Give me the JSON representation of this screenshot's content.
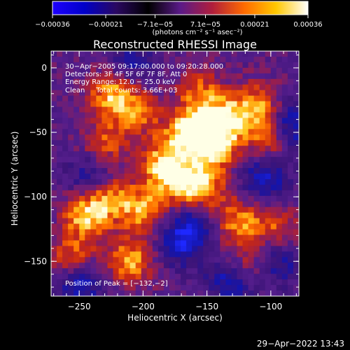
{
  "chart_data": {
    "type": "heatmap",
    "title": "Reconstructed RHESSI Image",
    "xlabel": "Heliocentric X (arcsec)",
    "ylabel": "Heliocentric Y (arcsec)",
    "xlim": [
      -272,
      -78
    ],
    "ylim": [
      -177,
      13
    ],
    "x_ticks": [
      -250,
      -200,
      -150,
      -100
    ],
    "x_tick_labels": [
      "−250",
      "−200",
      "−150",
      "−100"
    ],
    "y_ticks": [
      0,
      -50,
      -100,
      -150
    ],
    "y_tick_labels": [
      "0",
      "−50",
      "−100",
      "−150"
    ],
    "colorbar": {
      "range": [
        -0.00036,
        0.00036
      ],
      "ticks": [
        -0.00036,
        -0.00021,
        -7.1e-05,
        7.1e-05,
        0.00021,
        0.00036
      ],
      "tick_labels": [
        "−0.00036",
        "−0.00021",
        "−7.1e−05",
        "7.1e−05",
        "0.00021",
        "0.00036"
      ],
      "unit_label": "(photons cm⁻² s⁻¹ asec⁻²)",
      "colors": [
        "#1e00ff",
        "#0000c8",
        "#2a0860",
        "#000000",
        "#5a1a88",
        "#b01e3c",
        "#ff6a00",
        "#ffc800",
        "#ffffff"
      ]
    },
    "annotations": [
      "30−Apr−2005 09:17:00.000 to 09:20:28.000",
      "Detectors: 3F 4F 5F 6F 7F 8F, Att 0",
      "Energy Range: 12.0 − 25.0 keV",
      "Clean     Total counts: 3.66E+03",
      "Position of Peak = [−132,−2]"
    ],
    "peak": [
      -132,
      -2
    ],
    "bright_regions": [
      {
        "x": -165,
        "y": -50,
        "intensity": 1.0
      },
      {
        "x": -145,
        "y": -62,
        "intensity": 0.95
      },
      {
        "x": -135,
        "y": -40,
        "intensity": 0.85
      },
      {
        "x": -185,
        "y": -75,
        "intensity": 0.85
      },
      {
        "x": -200,
        "y": -110,
        "intensity": 0.8
      },
      {
        "x": -245,
        "y": -115,
        "intensity": 0.85
      },
      {
        "x": -228,
        "y": -100,
        "intensity": 0.7
      },
      {
        "x": -125,
        "y": -120,
        "intensity": 0.7
      },
      {
        "x": -110,
        "y": -30,
        "intensity": 0.75
      },
      {
        "x": -100,
        "y": -55,
        "intensity": 0.7
      },
      {
        "x": -225,
        "y": -20,
        "intensity": 0.8
      },
      {
        "x": -205,
        "y": -35,
        "intensity": 0.6
      },
      {
        "x": -168,
        "y": -90,
        "intensity": 0.75
      },
      {
        "x": -150,
        "y": -95,
        "intensity": 0.6
      },
      {
        "x": -210,
        "y": -150,
        "intensity": 0.8
      },
      {
        "x": -255,
        "y": -150,
        "intensity": 0.75
      },
      {
        "x": -120,
        "y": -155,
        "intensity": 0.6
      },
      {
        "x": -155,
        "y": -20,
        "intensity": 0.6
      },
      {
        "x": -230,
        "y": -60,
        "intensity": 0.55
      },
      {
        "x": -95,
        "y": -125,
        "intensity": 0.55
      }
    ],
    "dark_regions": [
      {
        "x": -250,
        "y": -165,
        "intensity": -0.85
      },
      {
        "x": -170,
        "y": -135,
        "intensity": -0.7
      },
      {
        "x": -130,
        "y": -165,
        "intensity": -0.85
      },
      {
        "x": -85,
        "y": -45,
        "intensity": -0.9
      },
      {
        "x": -240,
        "y": -85,
        "intensity": -0.6
      },
      {
        "x": -105,
        "y": -85,
        "intensity": -0.7
      },
      {
        "x": -160,
        "y": -120,
        "intensity": -0.5
      },
      {
        "x": -210,
        "y": 5,
        "intensity": -0.5
      },
      {
        "x": -95,
        "y": -150,
        "intensity": -0.6
      }
    ]
  },
  "footer": {
    "timestamp": "29−Apr−2022 13:43"
  }
}
